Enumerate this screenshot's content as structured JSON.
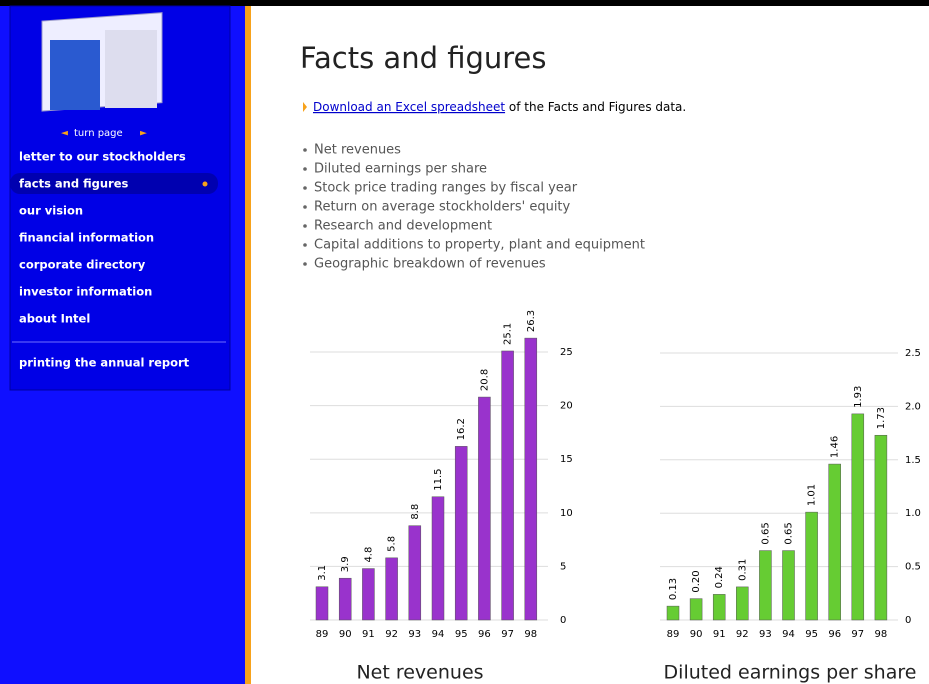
{
  "sidebar": {
    "turn_page": "turn page",
    "menu": [
      "letter to our stockholders",
      "facts and figures",
      "our vision",
      "financial information",
      "corporate directory",
      "investor information",
      "about Intel"
    ],
    "footer_item": "printing the annual report"
  },
  "header": {
    "title": "Facts and figures",
    "link": "Download an Excel spreadsheet",
    "link_suffix": " of the Facts and Figures data."
  },
  "bullets": [
    "Net revenues",
    "Diluted earnings per share",
    "Stock price trading ranges by fiscal year",
    "Return on average stockholders' equity",
    "Research and development",
    "Capital additions to property, plant and equipment",
    "Geographic breakdown of revenues"
  ],
  "chart_data": [
    {
      "type": "bar",
      "title": "Net revenues",
      "categories": [
        "89",
        "90",
        "91",
        "92",
        "93",
        "94",
        "95",
        "96",
        "97",
        "98"
      ],
      "values": [
        3.1,
        3.9,
        4.8,
        5.8,
        8.8,
        11.5,
        16.2,
        20.8,
        25.1,
        26.3
      ],
      "color": "#9933cc",
      "ylim": [
        0,
        27
      ],
      "yticks": [
        0,
        5,
        10,
        15,
        20,
        25
      ],
      "grid": true
    },
    {
      "type": "bar",
      "title": "Diluted earnings per share",
      "categories": [
        "89",
        "90",
        "91",
        "92",
        "93",
        "94",
        "95",
        "96",
        "97",
        "98"
      ],
      "values": [
        0.13,
        0.2,
        0.24,
        0.31,
        0.65,
        0.65,
        1.01,
        1.46,
        1.93,
        1.73
      ],
      "value_labels": [
        "0.13",
        "0.20",
        "0.24",
        "0.31",
        "0.65",
        "0.65",
        "1.01",
        "1.46",
        "1.93",
        "1.73"
      ],
      "color": "#66cc33",
      "ylim": [
        0,
        2.5
      ],
      "yticks": [
        0,
        0.5,
        {
          "value": 1,
          "label": "1.0"
        },
        1.5,
        {
          "value": 2,
          "label": "2.0"
        },
        2.5
      ],
      "grid": true
    }
  ]
}
